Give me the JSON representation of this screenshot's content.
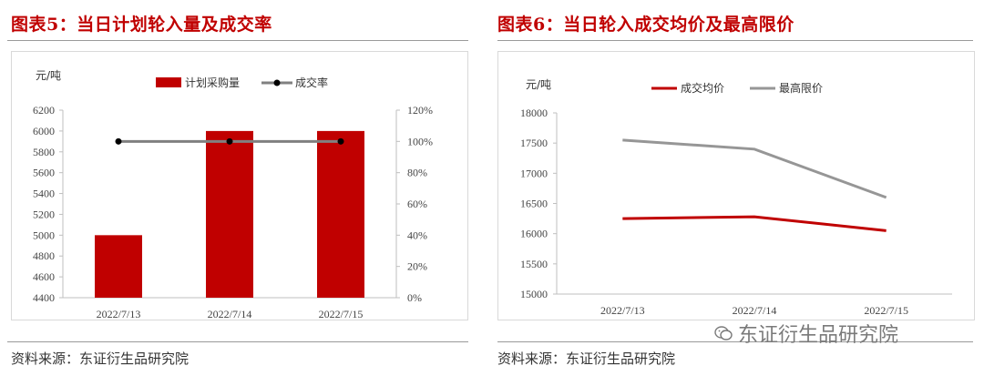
{
  "figures": [
    {
      "title": "图表5：当日计划轮入量及成交率",
      "source": "资料来源：东证衍生品研究院"
    },
    {
      "title": "图表6：当日轮入成交均价及最高限价",
      "source": "资料来源：东证衍生品研究院"
    }
  ],
  "watermark": "东证衍生品研究院",
  "chart_data": [
    {
      "type": "bar",
      "unit_label": "元/吨",
      "categories": [
        "2022/7/13",
        "2022/7/14",
        "2022/7/15"
      ],
      "series": [
        {
          "name": "计划采购量",
          "type": "bar",
          "axis": "left",
          "color": "#c00000",
          "values": [
            5000,
            6000,
            6000
          ]
        },
        {
          "name": "成交率",
          "type": "line",
          "axis": "right",
          "color": "#808080",
          "marker": "black-circle",
          "values": [
            100,
            100,
            100
          ]
        }
      ],
      "y_left": {
        "min": 4400,
        "max": 6200,
        "step": 200,
        "tick_labels": [
          "4400",
          "4600",
          "4800",
          "5000",
          "5200",
          "5400",
          "5600",
          "5800",
          "6000",
          "6200"
        ]
      },
      "y_right": {
        "min": 0,
        "max": 120,
        "step": 20,
        "tick_labels": [
          "0%",
          "20%",
          "40%",
          "60%",
          "80%",
          "100%",
          "120%"
        ]
      },
      "legend_position": "top"
    },
    {
      "type": "line",
      "unit_label": "元/吨",
      "categories": [
        "2022/7/13",
        "2022/7/14",
        "2022/7/15"
      ],
      "series": [
        {
          "name": "成交均价",
          "color": "#c00000",
          "values": [
            16250,
            16280,
            16050
          ]
        },
        {
          "name": "最高限价",
          "color": "#969696",
          "values": [
            17550,
            17400,
            16600
          ]
        }
      ],
      "y": {
        "min": 15000,
        "max": 18000,
        "step": 500,
        "tick_labels": [
          "15000",
          "15500",
          "16000",
          "16500",
          "17000",
          "17500",
          "18000"
        ]
      },
      "legend_position": "top"
    }
  ]
}
